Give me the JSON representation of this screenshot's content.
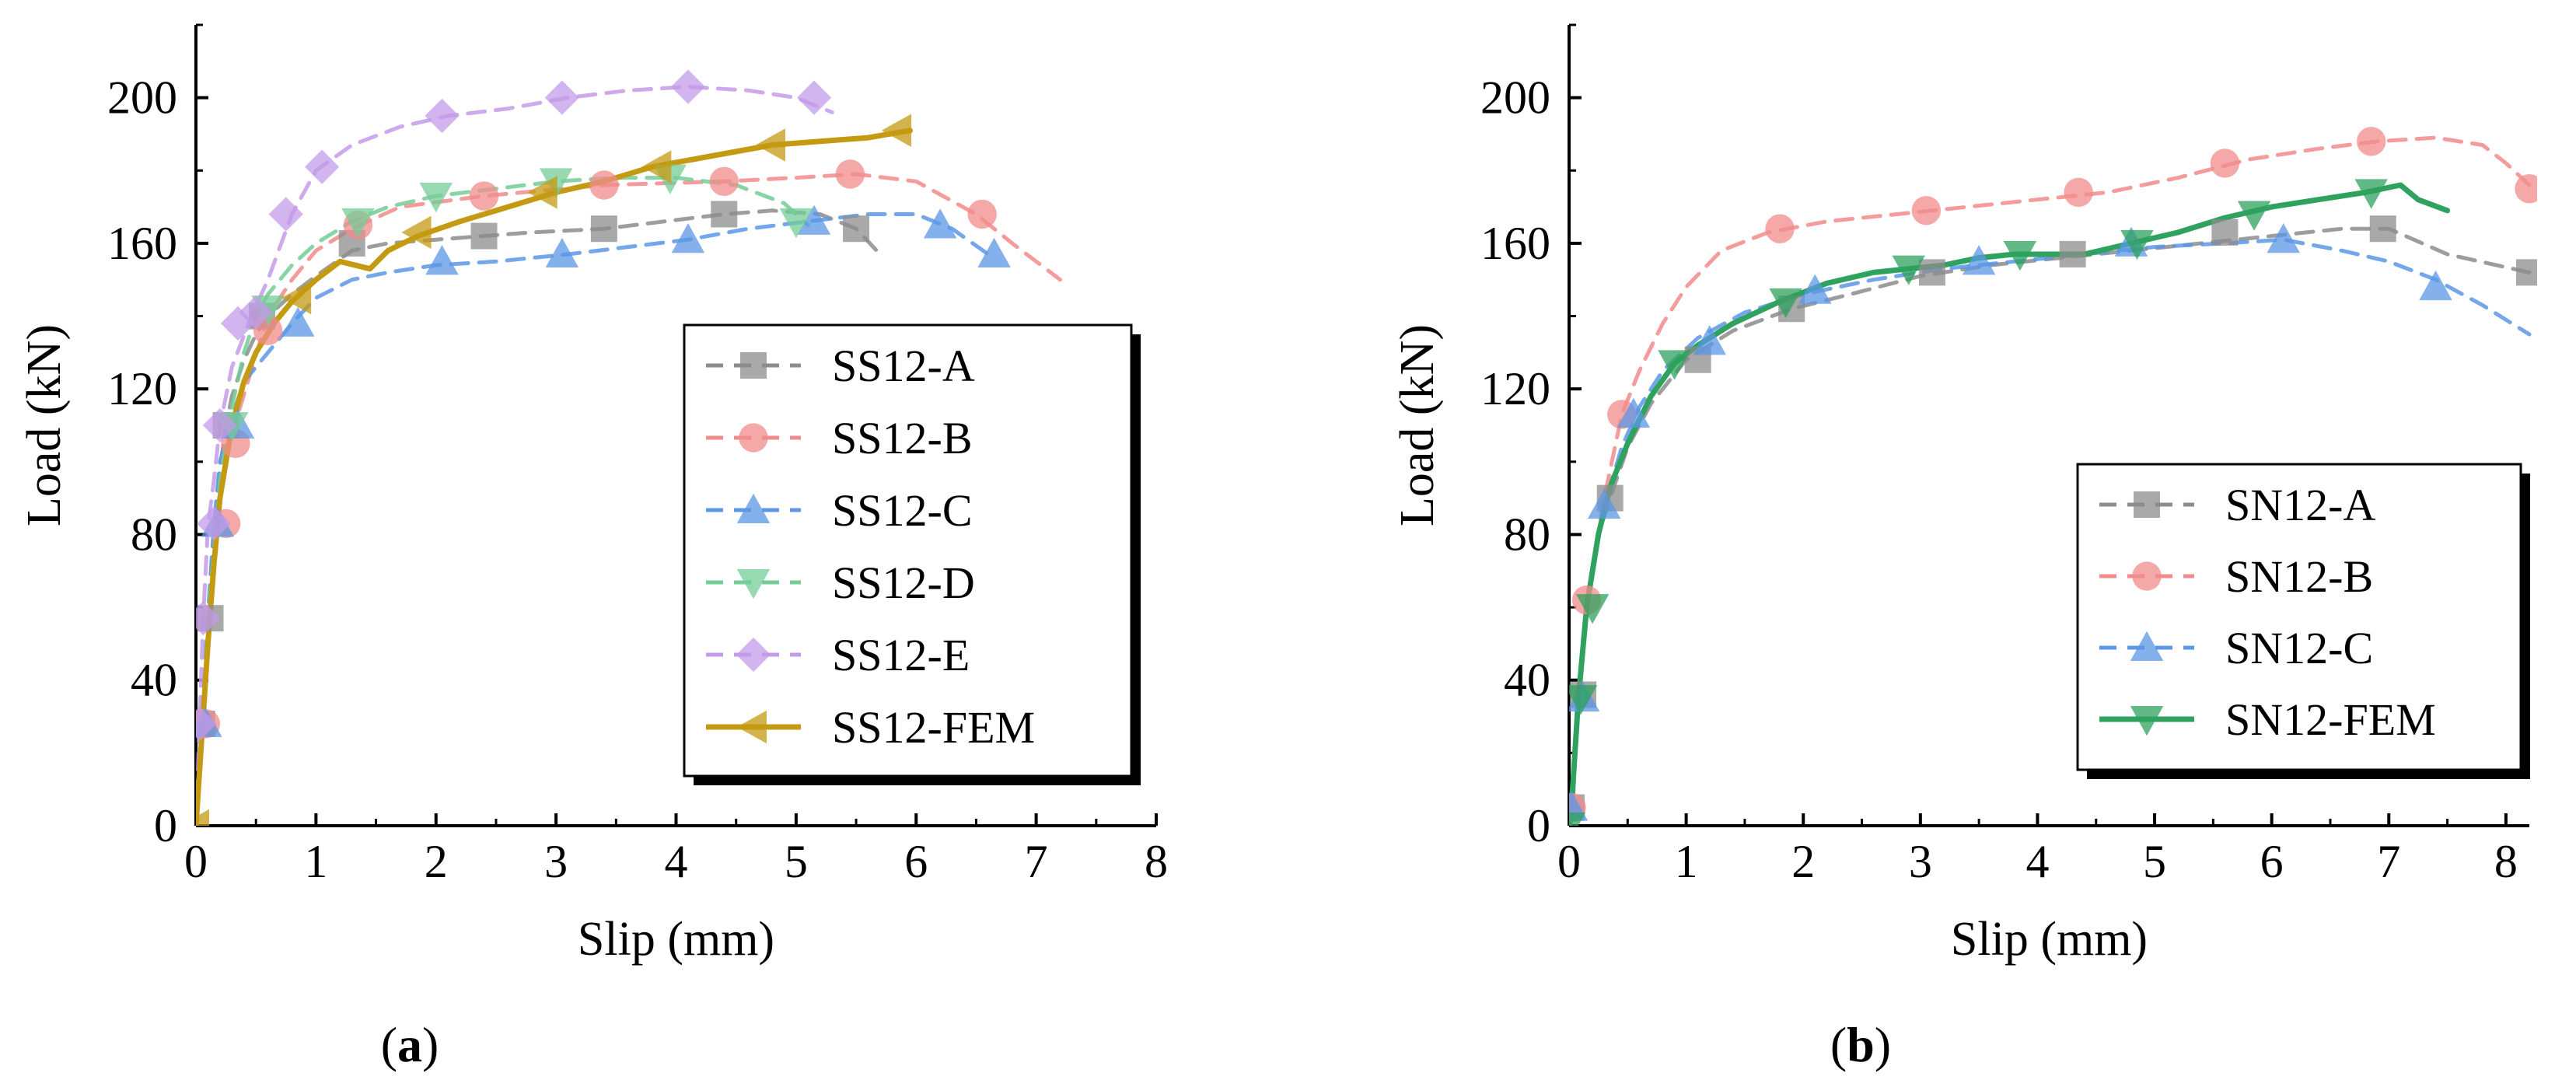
{
  "figure_labels": {
    "a_open": "(",
    "a_letter": "a",
    "a_close": ")",
    "b_open": "(",
    "b_letter": "b",
    "b_close": ")"
  },
  "colors": {
    "gray": "#8c8c8c",
    "red": "#f28b8b",
    "blue": "#5b97e6",
    "green": "#74cc97",
    "purple": "#c39be8",
    "fem_a": "#c49a12",
    "fem_b": "#2ea25e"
  },
  "chart_data": [
    {
      "panel": "a",
      "type": "line",
      "title": "",
      "xlabel": "Slip (mm)",
      "ylabel": "Load (kN)",
      "xlim": [
        0,
        8
      ],
      "ylim": [
        0,
        220
      ],
      "xticks": [
        "0",
        "1",
        "2",
        "3",
        "4",
        "5",
        "6",
        "7",
        "8"
      ],
      "xtick_values": [
        0,
        1,
        2,
        3,
        4,
        5,
        6,
        7,
        8
      ],
      "yticks": [
        "0",
        "40",
        "80",
        "120",
        "160",
        "200"
      ],
      "ytick_values": [
        0,
        40,
        80,
        120,
        160,
        200
      ],
      "legend_position": "right",
      "series": [
        {
          "name": "SS12-A",
          "style": "dashed",
          "marker": "square",
          "color": "#8c8c8c",
          "x": [
            0,
            0.05,
            0.1,
            0.15,
            0.2,
            0.25,
            0.3,
            0.4,
            0.5,
            0.6,
            0.8,
            1.0,
            1.3,
            1.6,
            2.0,
            2.4,
            2.8,
            3.4,
            3.9,
            4.4,
            4.8,
            5.2,
            5.5,
            5.7
          ],
          "y": [
            0,
            28,
            57,
            80,
            98,
            110,
            118,
            128,
            135,
            140,
            146,
            151,
            158,
            160,
            161,
            162,
            163,
            164,
            166,
            168,
            169,
            168,
            164,
            157
          ],
          "markers_x": [
            0.05,
            0.12,
            0.25,
            0.55,
            1.3,
            2.4,
            3.4,
            4.4,
            5.5
          ],
          "markers_y": [
            28,
            57,
            110,
            140,
            160,
            162,
            164,
            168,
            164
          ]
        },
        {
          "name": "SS12-B",
          "style": "dashed",
          "marker": "circle",
          "color": "#f28b8b",
          "x": [
            0,
            0.05,
            0.1,
            0.15,
            0.2,
            0.25,
            0.35,
            0.45,
            0.6,
            0.8,
            1.0,
            1.3,
            1.7,
            2.4,
            3.4,
            4.4,
            5.0,
            5.5,
            6.0,
            6.5,
            6.8,
            7.2
          ],
          "y": [
            0,
            28,
            57,
            80,
            94,
            103,
            113,
            124,
            140,
            150,
            158,
            164,
            170,
            173,
            176,
            177,
            178,
            179,
            177,
            168,
            160,
            150
          ],
          "markers_x": [
            0.08,
            0.25,
            0.33,
            0.6,
            1.35,
            2.4,
            3.4,
            4.4,
            5.45,
            6.55
          ],
          "markers_y": [
            28,
            83,
            105,
            136,
            165,
            173,
            176,
            177,
            179,
            168
          ]
        },
        {
          "name": "SS12-C",
          "style": "dashed",
          "marker": "triangle-up",
          "color": "#5b97e6",
          "x": [
            0,
            0.05,
            0.1,
            0.15,
            0.2,
            0.3,
            0.4,
            0.6,
            0.8,
            1.0,
            1.3,
            1.6,
            2.0,
            2.5,
            3.1,
            3.6,
            4.1,
            4.6,
            5.1,
            5.6,
            6.0,
            6.3,
            6.6
          ],
          "y": [
            0,
            30,
            58,
            83,
            100,
            112,
            122,
            130,
            138,
            145,
            150,
            152,
            154,
            155,
            157,
            159,
            161,
            164,
            166,
            168,
            168,
            164,
            157
          ],
          "markers_x": [
            0.08,
            0.18,
            0.35,
            0.85,
            2.05,
            3.05,
            4.1,
            5.15,
            6.2,
            6.65
          ],
          "markers_y": [
            28,
            83,
            110,
            138,
            155,
            157,
            161,
            166,
            165,
            157
          ]
        },
        {
          "name": "SS12-D",
          "style": "dashed",
          "marker": "triangle-down",
          "color": "#74cc97",
          "x": [
            0,
            0.05,
            0.1,
            0.2,
            0.3,
            0.4,
            0.5,
            0.6,
            0.8,
            1.0,
            1.3,
            1.6,
            2.0,
            2.5,
            3.0,
            3.5,
            4.0,
            4.5,
            4.9,
            5.1
          ],
          "y": [
            0,
            28,
            57,
            95,
            115,
            130,
            140,
            146,
            154,
            160,
            166,
            170,
            173,
            175,
            177,
            178,
            178,
            176,
            171,
            165
          ],
          "markers_x": [
            0.3,
            0.6,
            1.35,
            2.0,
            3.0,
            3.95,
            5.0
          ],
          "markers_y": [
            110,
            142,
            166,
            173,
            177,
            178,
            166
          ]
        },
        {
          "name": "SS12-E",
          "style": "dashed",
          "marker": "diamond",
          "color": "#c39be8",
          "x": [
            0,
            0.03,
            0.06,
            0.1,
            0.15,
            0.2,
            0.3,
            0.45,
            0.6,
            0.8,
            1.0,
            1.3,
            1.7,
            2.1,
            2.6,
            3.1,
            3.6,
            4.1,
            4.6,
            5.0,
            5.3
          ],
          "y": [
            0,
            28,
            57,
            82,
            95,
            110,
            126,
            139,
            150,
            168,
            180,
            187,
            192,
            195,
            197,
            200,
            202,
            203,
            202,
            200,
            196
          ],
          "markers_x": [
            0.03,
            0.06,
            0.15,
            0.2,
            0.35,
            0.5,
            0.75,
            1.05,
            2.05,
            3.05,
            4.1,
            5.15
          ],
          "markers_y": [
            28,
            57,
            83,
            110,
            138,
            141,
            168,
            181,
            195,
            200,
            203,
            200
          ]
        },
        {
          "name": "SS12-FEM",
          "style": "solid",
          "marker": "triangle-left",
          "color": "#c49a12",
          "x": [
            0,
            0.05,
            0.1,
            0.15,
            0.2,
            0.3,
            0.4,
            0.5,
            0.65,
            0.8,
            1.0,
            1.2,
            1.45,
            1.6,
            1.85,
            2.2,
            2.6,
            3.0,
            3.4,
            3.8,
            4.3,
            4.8,
            5.2,
            5.6,
            5.95
          ],
          "y": [
            0,
            25,
            50,
            72,
            90,
            110,
            122,
            130,
            138,
            144,
            150,
            155,
            153,
            158,
            162,
            166,
            170,
            174,
            177,
            181,
            184,
            187,
            188,
            189,
            191
          ],
          "markers_x": [
            0,
            0.85,
            1.85,
            2.9,
            3.85,
            4.8,
            5.85
          ],
          "markers_y": [
            0,
            145,
            163,
            174,
            181,
            187,
            191
          ]
        }
      ]
    },
    {
      "panel": "b",
      "type": "line",
      "title": "",
      "xlabel": "Slip (mm)",
      "ylabel": "Load (kN)",
      "xlim": [
        0,
        8.2
      ],
      "ylim": [
        0,
        220
      ],
      "xticks": [
        "0",
        "1",
        "2",
        "3",
        "4",
        "5",
        "6",
        "7",
        "8"
      ],
      "xtick_values": [
        0,
        1,
        2,
        3,
        4,
        5,
        6,
        7,
        8
      ],
      "yticks": [
        "0",
        "40",
        "80",
        "120",
        "160",
        "200"
      ],
      "ytick_values": [
        0,
        40,
        80,
        120,
        160,
        200
      ],
      "legend_position": "right",
      "series": [
        {
          "name": "SN12-A",
          "style": "dashed",
          "marker": "square",
          "color": "#8c8c8c",
          "x": [
            0,
            0.03,
            0.08,
            0.15,
            0.25,
            0.35,
            0.5,
            0.7,
            1.0,
            1.4,
            1.9,
            2.4,
            3.0,
            3.6,
            4.2,
            4.8,
            5.4,
            6.0,
            6.6,
            7.0,
            7.5,
            8.2
          ],
          "y": [
            0,
            5,
            35,
            62,
            80,
            90,
            104,
            116,
            128,
            136,
            142,
            146,
            151,
            154,
            156,
            158,
            160,
            162,
            164,
            164,
            157,
            152
          ],
          "markers_x": [
            0.02,
            0.12,
            0.35,
            1.1,
            1.9,
            3.1,
            4.3,
            5.6,
            6.95,
            8.2
          ],
          "markers_y": [
            5,
            36,
            90,
            128,
            142,
            152,
            157,
            163,
            164,
            152
          ]
        },
        {
          "name": "SN12-B",
          "style": "dashed",
          "marker": "circle",
          "color": "#f28b8b",
          "x": [
            0,
            0.03,
            0.08,
            0.15,
            0.3,
            0.45,
            0.6,
            0.8,
            1.0,
            1.3,
            1.7,
            2.2,
            2.8,
            3.4,
            4.0,
            4.6,
            5.2,
            5.8,
            6.4,
            6.9,
            7.4,
            7.8,
            8.0,
            8.2
          ],
          "y": [
            0,
            10,
            35,
            62,
            90,
            113,
            125,
            138,
            148,
            158,
            163,
            166,
            168,
            170,
            172,
            174,
            178,
            183,
            186,
            188,
            189,
            187,
            182,
            176
          ],
          "markers_x": [
            0.02,
            0.15,
            0.45,
            1.8,
            3.05,
            4.35,
            5.6,
            6.85,
            8.2
          ],
          "markers_y": [
            5,
            62,
            113,
            164,
            169,
            174,
            182,
            188,
            175
          ]
        },
        {
          "name": "SN12-C",
          "style": "dashed",
          "marker": "triangle-up",
          "color": "#5b97e6",
          "x": [
            0,
            0.03,
            0.08,
            0.15,
            0.3,
            0.45,
            0.6,
            0.8,
            1.1,
            1.5,
            2.0,
            2.6,
            3.2,
            3.8,
            4.4,
            5.0,
            5.6,
            6.1,
            6.6,
            7.0,
            7.4,
            7.8,
            8.2
          ],
          "y": [
            0,
            6,
            35,
            60,
            88,
            104,
            115,
            125,
            134,
            141,
            146,
            150,
            153,
            155,
            157,
            159,
            160,
            161,
            158,
            155,
            150,
            143,
            135
          ],
          "markers_x": [
            0.02,
            0.12,
            0.3,
            0.55,
            1.2,
            2.1,
            3.5,
            4.8,
            6.1,
            7.4
          ],
          "markers_y": [
            5,
            35,
            88,
            113,
            133,
            147,
            155,
            160,
            161,
            148
          ]
        },
        {
          "name": "SN12-FEM",
          "style": "solid",
          "marker": "triangle-down",
          "color": "#2ea25e",
          "x": [
            0,
            0.03,
            0.08,
            0.15,
            0.25,
            0.35,
            0.5,
            0.7,
            0.9,
            1.1,
            1.4,
            1.8,
            2.2,
            2.6,
            2.9,
            3.2,
            3.5,
            3.8,
            4.1,
            4.4,
            4.8,
            5.2,
            5.6,
            6.0,
            6.4,
            6.8,
            7.1,
            7.25,
            7.5
          ],
          "y": [
            0,
            10,
            35,
            60,
            80,
            93,
            105,
            118,
            127,
            132,
            138,
            144,
            149,
            152,
            153,
            154,
            156,
            157,
            157,
            157,
            160,
            163,
            167,
            170,
            172,
            174,
            176,
            172,
            169
          ],
          "markers_x": [
            0,
            0.1,
            0.2,
            0.9,
            1.85,
            2.9,
            3.85,
            4.85,
            5.85,
            6.85
          ],
          "markers_y": [
            0,
            35,
            60,
            127,
            144,
            153,
            157,
            160,
            168,
            174
          ]
        }
      ]
    }
  ]
}
